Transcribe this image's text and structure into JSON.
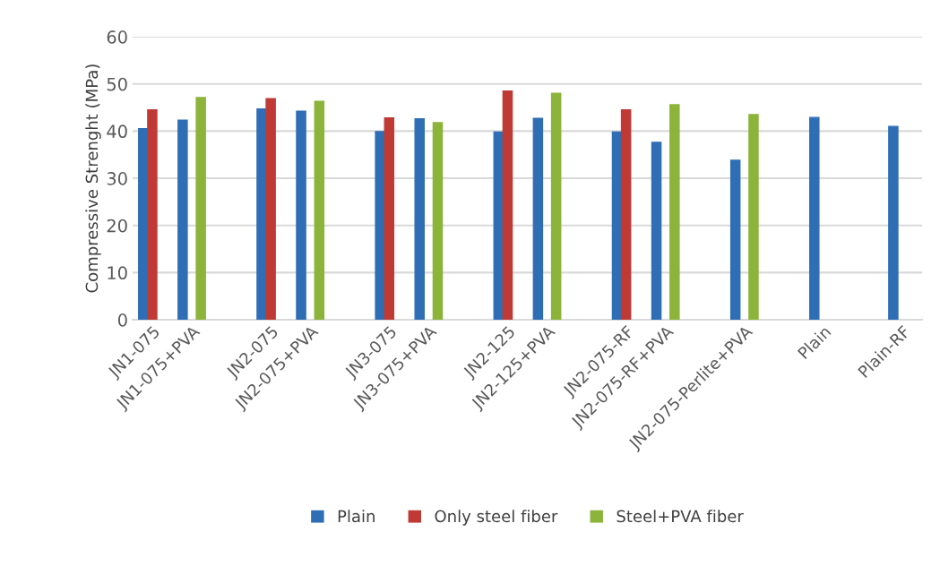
{
  "chart_data": {
    "type": "bar",
    "ylabel": "Compressive Strenght (MPa)",
    "categories": [
      "JN1-075",
      "JN1-075+PVA",
      null,
      "JN2-075",
      "JN2-075+PVA",
      null,
      "JN3-075",
      "JN3-075+PVA",
      null,
      "JN2-125",
      "JN2-125+PVA",
      null,
      "JN2-075-RF",
      "JN2-075-RF+PVA",
      null,
      "JN2-075-Perlite+PVA",
      null,
      "Plain",
      null,
      "Plain-RF"
    ],
    "series": [
      {
        "name": "Plain",
        "color": "#2f6eb5",
        "values": [
          40.5,
          42.3,
          null,
          44.7,
          44.2,
          null,
          39.9,
          42.6,
          null,
          39.8,
          42.7,
          null,
          39.8,
          37.6,
          null,
          33.8,
          null,
          42.9,
          null,
          41.0
        ]
      },
      {
        "name": "Only steel fiber",
        "color": "#c03a35",
        "values": [
          44.5,
          null,
          null,
          46.9,
          null,
          null,
          42.8,
          null,
          null,
          48.5,
          null,
          null,
          44.5,
          null,
          null,
          null,
          null,
          null,
          null,
          null
        ]
      },
      {
        "name": "Steel+PVA fiber",
        "color": "#8cb43a",
        "values": [
          null,
          47.1,
          null,
          null,
          46.3,
          null,
          null,
          41.8,
          null,
          null,
          48.0,
          null,
          null,
          45.6,
          null,
          43.5,
          null,
          null,
          null,
          null
        ]
      }
    ],
    "ylim": [
      0,
      60
    ],
    "yticks": [
      0,
      10,
      20,
      30,
      40,
      50,
      60
    ],
    "grid": "y",
    "legend": "bottom"
  }
}
